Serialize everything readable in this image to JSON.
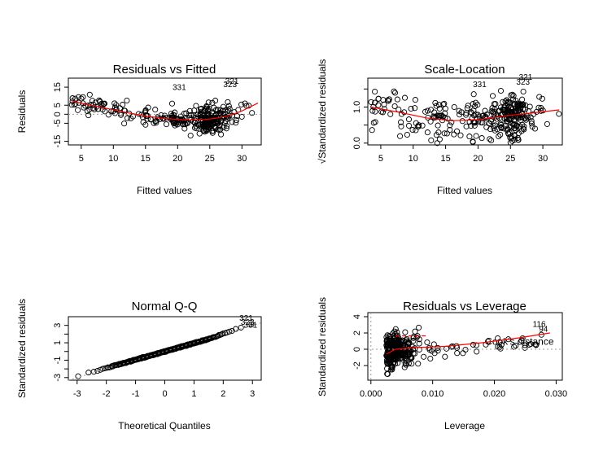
{
  "chart_data": [
    {
      "type": "scatter",
      "id": "resid_fitted",
      "title": "Residuals vs Fitted",
      "xlabel": "Fitted values",
      "ylabel": "Residuals",
      "xlim": [
        3,
        33
      ],
      "ylim": [
        -17,
        20
      ],
      "xticks": [
        5,
        10,
        15,
        20,
        25,
        30
      ],
      "yticks": [
        -15,
        -5,
        0,
        5,
        15
      ],
      "refline_y": 0,
      "smooth": [
        [
          3.5,
          7.5
        ],
        [
          6,
          5.3
        ],
        [
          9,
          3.2
        ],
        [
          12,
          1.0
        ],
        [
          15,
          -1.0
        ],
        [
          18,
          -2.4
        ],
        [
          21,
          -3.1
        ],
        [
          24,
          -3.0
        ],
        [
          26,
          -2.2
        ],
        [
          28,
          -0.8
        ],
        [
          30,
          1.8
        ],
        [
          32.5,
          6.2
        ]
      ],
      "annotations": [
        {
          "label": "331",
          "x": 19.2,
          "y": 13.5
        },
        {
          "label": "321",
          "x": 27.4,
          "y": 16.9
        },
        {
          "label": "323",
          "x": 27.1,
          "y": 15.1
        }
      ],
      "seed": 11
    },
    {
      "type": "scatter",
      "id": "scale_location",
      "title": "Scale-Location",
      "xlabel": "Fitted values",
      "ylabel": "√Standardized residuals",
      "xlim": [
        3,
        33
      ],
      "ylim": [
        -0.05,
        1.8
      ],
      "xticks": [
        5,
        10,
        15,
        20,
        25,
        30
      ],
      "yticks": [
        0.0,
        0.5,
        1.0,
        1.5
      ],
      "ytick_labels": [
        "0.0",
        "",
        "1.0",
        ""
      ],
      "smooth": [
        [
          3.5,
          1.0
        ],
        [
          8,
          0.85
        ],
        [
          12,
          0.7
        ],
        [
          16,
          0.62
        ],
        [
          20,
          0.65
        ],
        [
          24,
          0.75
        ],
        [
          28,
          0.83
        ],
        [
          32.5,
          0.92
        ]
      ],
      "annotations": [
        {
          "label": "331",
          "x": 19.2,
          "y": 1.55
        },
        {
          "label": "321",
          "x": 26.3,
          "y": 1.75
        },
        {
          "label": "323",
          "x": 25.9,
          "y": 1.62
        }
      ],
      "seed": 23
    },
    {
      "type": "scatter",
      "id": "normal_qq",
      "title": "Normal Q-Q",
      "xlabel": "Theoretical Quantiles",
      "ylabel": "Standardized residuals",
      "xlim": [
        -3.3,
        3.3
      ],
      "ylim": [
        -3.3,
        4.0
      ],
      "xticks": [
        -3,
        -2,
        -1,
        0,
        1,
        2,
        3
      ],
      "yticks": [
        -3,
        -2,
        -1,
        0,
        1,
        2,
        3
      ],
      "ytick_labels": [
        "-3",
        "",
        "-1",
        "",
        "1",
        "",
        "3"
      ],
      "refline_diag": [
        [
          -3.3,
          -3.3
        ],
        [
          3.3,
          3.3
        ]
      ],
      "annotations": [
        {
          "label": "321",
          "x": 2.55,
          "y": 3.55
        },
        {
          "label": "323",
          "x": 2.6,
          "y": 3.05
        },
        {
          "label": "331",
          "x": 2.7,
          "y": 2.75
        }
      ],
      "seed": 37
    },
    {
      "type": "scatter",
      "id": "resid_leverage",
      "title": "Residuals vs Leverage",
      "xlabel": "Leverage",
      "ylabel": "Standardized residuals",
      "xlim": [
        -0.0005,
        0.031
      ],
      "ylim": [
        -3.8,
        4.5
      ],
      "xticks": [
        0.0,
        0.01,
        0.02,
        0.03
      ],
      "xtick_labels": [
        "0.000",
        "0.010",
        "0.020",
        "0.030"
      ],
      "yticks": [
        -2,
        0,
        2,
        4
      ],
      "refline_y": 0,
      "refline_x": 0,
      "smooth": [
        [
          0.0025,
          -0.6
        ],
        [
          0.004,
          0.0
        ],
        [
          0.007,
          0.2
        ],
        [
          0.012,
          0.35
        ],
        [
          0.018,
          0.8
        ],
        [
          0.024,
          1.4
        ],
        [
          0.029,
          2.0
        ]
      ],
      "cooks_segment": [
        [
          0.004,
          1.65
        ],
        [
          0.009,
          1.65
        ]
      ],
      "cooks_label": "Cook's distance",
      "annotations": [
        {
          "label": "116",
          "x": 0.0262,
          "y": 2.75
        },
        {
          "label": "94",
          "x": 0.0272,
          "y": 2.15
        }
      ],
      "seed": 53
    }
  ]
}
